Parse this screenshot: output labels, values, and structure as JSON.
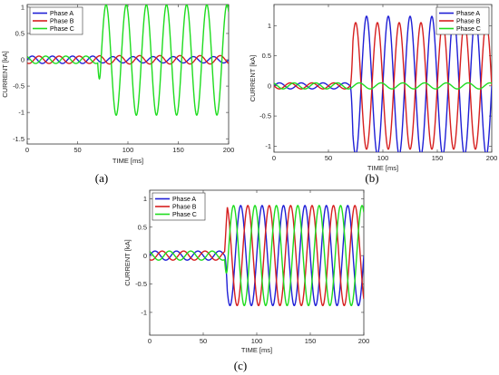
{
  "chart_data": [
    {
      "type": "line",
      "panel_label": "(a)",
      "xlabel": "TIME [ms]",
      "ylabel": "CURRENT [kA]",
      "xlim": [
        0,
        200
      ],
      "ylim": [
        -1.6,
        1.05
      ],
      "xticks": [
        "0",
        "50",
        "100",
        "150",
        "200"
      ],
      "yticks": [
        "1",
        "0.5",
        "0",
        "-0.5",
        "-1",
        "-1.5"
      ],
      "ytick_values": [
        1,
        0.5,
        0,
        -0.5,
        -1,
        -1.5
      ],
      "legend_position": "top-left",
      "series": [
        {
          "name": "Phase A",
          "color": "#1f1fd6",
          "pre_amp": 0.07,
          "post_amp": 0.06,
          "post_offset": 0,
          "phase_deg": 0,
          "fault_ms": 70
        },
        {
          "name": "Phase B",
          "color": "#d61f1f",
          "pre_amp": 0.07,
          "post_amp": 0.08,
          "post_offset": 0,
          "phase_deg": -120,
          "fault_ms": 70
        },
        {
          "name": "Phase C",
          "color": "#1fdc1f",
          "pre_amp": 0.07,
          "post_amp": 1.05,
          "post_offset": -0.05,
          "phase_deg": 120,
          "fault_ms": 70
        }
      ]
    },
    {
      "type": "line",
      "panel_label": "(b)",
      "xlabel": "TIME [ms]",
      "ylabel": "CURRENT [kA]",
      "xlim": [
        0,
        200
      ],
      "ylim": [
        -1.1,
        1.35
      ],
      "xticks": [
        "0",
        "50",
        "100",
        "150",
        "200"
      ],
      "yticks": [
        "1",
        "0.5",
        "0",
        "-0.5",
        "-1"
      ],
      "ytick_values": [
        1,
        0.5,
        0,
        -0.5,
        -1
      ],
      "legend_position": "top-right",
      "series": [
        {
          "name": "Phase A",
          "color": "#1f1fd6",
          "pre_amp": 0.05,
          "post_amp": 1.15,
          "post_offset": 0.1,
          "phase_deg": 0,
          "fault_ms": 70
        },
        {
          "name": "Phase B",
          "color": "#d61f1f",
          "pre_amp": 0.05,
          "post_amp": 1.05,
          "post_offset": 0,
          "phase_deg": 180,
          "fault_ms": 70
        },
        {
          "name": "Phase C",
          "color": "#1fdc1f",
          "pre_amp": 0.05,
          "post_amp": 0.05,
          "post_offset": 0,
          "phase_deg": 120,
          "fault_ms": 70
        }
      ]
    },
    {
      "type": "line",
      "panel_label": "(c)",
      "xlabel": "TIME [ms]",
      "ylabel": "CURRENT [kA]",
      "xlim": [
        0,
        200
      ],
      "ylim": [
        -1.4,
        1.15
      ],
      "xticks": [
        "0",
        "50",
        "100",
        "150",
        "200"
      ],
      "yticks": [
        "1",
        "0.5",
        "0",
        "-0.5",
        "-1"
      ],
      "ytick_values": [
        1,
        0.5,
        0,
        -0.5,
        -1
      ],
      "legend_position": "top-left",
      "series": [
        {
          "name": "Phase A",
          "color": "#1f1fd6",
          "pre_amp": 0.08,
          "post_amp": 0.88,
          "post_offset": 0,
          "phase_deg": 0,
          "fault_ms": 70
        },
        {
          "name": "Phase B",
          "color": "#d61f1f",
          "pre_amp": 0.08,
          "post_amp": 0.88,
          "post_offset": 0,
          "phase_deg": -120,
          "fault_ms": 70
        },
        {
          "name": "Phase C",
          "color": "#1fdc1f",
          "pre_amp": 0.08,
          "post_amp": 0.88,
          "post_offset": 0,
          "phase_deg": 120,
          "fault_ms": 70
        }
      ]
    }
  ]
}
